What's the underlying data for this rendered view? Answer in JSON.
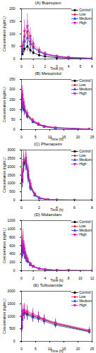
{
  "chart_data": [
    {
      "type": "line",
      "panel": "(A)",
      "title": "Bupropion",
      "x_label": "Time (h)",
      "y_label": "Concentration (ng/mL)",
      "x": [
        0.083,
        0.25,
        0.5,
        0.75,
        1,
        1.5,
        2,
        3,
        4,
        6
      ],
      "xlim": [
        0,
        6
      ],
      "xticks": [
        0,
        1,
        2,
        3,
        4,
        5,
        6
      ],
      "ylim": [
        0,
        200
      ],
      "yticks": [
        0,
        50,
        100,
        150,
        200
      ],
      "legend": "top-right",
      "series": [
        {
          "name": "Control",
          "color": "#000000",
          "marker": "square",
          "line_style": "solid",
          "values": [
            20,
            40,
            50,
            35,
            25,
            15,
            10,
            5,
            3,
            1
          ],
          "errors": [
            8,
            15,
            20,
            14,
            10,
            6,
            4,
            2,
            1,
            0.5
          ]
        },
        {
          "name": "Low",
          "color": "#e8191b",
          "marker": "circle",
          "line_style": "solid",
          "values": [
            40,
            90,
            110,
            70,
            50,
            30,
            20,
            10,
            6,
            2
          ],
          "errors": [
            18,
            35,
            45,
            28,
            20,
            12,
            8,
            4,
            2,
            1
          ]
        },
        {
          "name": "Medium",
          "color": "#1f3fd6",
          "marker": "triangle",
          "line_style": "solid",
          "values": [
            30,
            70,
            85,
            60,
            45,
            28,
            18,
            9,
            5,
            2
          ],
          "errors": [
            12,
            28,
            30,
            22,
            16,
            10,
            7,
            3,
            2,
            1
          ]
        },
        {
          "name": "High",
          "color": "#d61fc4",
          "marker": "down-triangle",
          "line_style": "solid",
          "values": [
            50,
            110,
            130,
            90,
            60,
            35,
            22,
            12,
            7,
            3
          ],
          "errors": [
            20,
            45,
            50,
            35,
            22,
            14,
            9,
            5,
            3,
            1
          ]
        }
      ]
    },
    {
      "type": "line",
      "panel": "(B)",
      "title": "Metoprolol",
      "x_label": "Time (h)",
      "y_label": "Concentration (ng/mL)",
      "x": [
        0.083,
        0.25,
        0.5,
        1,
        2,
        4,
        6,
        8,
        12,
        24
      ],
      "xlim": [
        0,
        25
      ],
      "xticks": [
        0,
        5,
        10,
        15,
        20,
        25
      ],
      "ylim": [
        0,
        250
      ],
      "yticks": [
        0,
        50,
        100,
        150,
        200,
        250
      ],
      "legend": "top-right",
      "series": [
        {
          "name": "Control",
          "color": "#000000",
          "marker": "square",
          "line_style": "solid",
          "values": [
            120,
            150,
            130,
            100,
            70,
            40,
            25,
            15,
            8,
            2
          ],
          "errors": [
            30,
            40,
            35,
            25,
            15,
            10,
            6,
            4,
            2,
            1
          ]
        },
        {
          "name": "Low",
          "color": "#e8191b",
          "marker": "circle",
          "line_style": "solid",
          "values": [
            130,
            160,
            140,
            110,
            75,
            45,
            28,
            17,
            9,
            2
          ],
          "errors": [
            35,
            45,
            40,
            28,
            18,
            10,
            7,
            4,
            2,
            1
          ]
        },
        {
          "name": "Medium",
          "color": "#1f3fd6",
          "marker": "triangle",
          "line_style": "solid",
          "values": [
            110,
            140,
            125,
            95,
            65,
            38,
            24,
            14,
            7,
            2
          ],
          "errors": [
            28,
            38,
            32,
            24,
            14,
            9,
            6,
            3,
            2,
            1
          ]
        },
        {
          "name": "High",
          "color": "#d61fc4",
          "marker": "down-triangle",
          "line_style": "solid",
          "values": [
            140,
            170,
            150,
            115,
            80,
            48,
            30,
            18,
            10,
            3
          ],
          "errors": [
            40,
            50,
            45,
            30,
            20,
            12,
            8,
            5,
            3,
            1
          ]
        }
      ]
    },
    {
      "type": "line",
      "panel": "(C)",
      "title": "Phenacetin",
      "x_label": "Time (h)",
      "y_label": "Concentration (ng/mL)",
      "x": [
        0.083,
        0.25,
        0.5,
        0.75,
        1,
        1.5,
        2,
        3,
        4,
        6,
        8
      ],
      "xlim": [
        0,
        8
      ],
      "xticks": [
        0,
        2,
        4,
        6,
        8
      ],
      "ylim": [
        0,
        3000
      ],
      "yticks": [
        0,
        500,
        1000,
        1500,
        2000,
        2500,
        3000
      ],
      "legend": "top-right",
      "series": [
        {
          "name": "Control",
          "color": "#000000",
          "marker": "square",
          "line_style": "solid",
          "values": [
            1200,
            2200,
            2300,
            1500,
            800,
            300,
            120,
            30,
            10,
            3,
            1
          ],
          "errors": [
            400,
            500,
            500,
            400,
            250,
            100,
            40,
            10,
            4,
            1,
            0.5
          ]
        },
        {
          "name": "Low",
          "color": "#e8191b",
          "marker": "circle",
          "line_style": "solid",
          "values": [
            1300,
            2300,
            2400,
            1600,
            900,
            350,
            140,
            35,
            12,
            3,
            1
          ],
          "errors": [
            450,
            550,
            500,
            450,
            300,
            120,
            45,
            12,
            5,
            1,
            0.5
          ]
        },
        {
          "name": "Medium",
          "color": "#1f3fd6",
          "marker": "triangle",
          "line_style": "solid",
          "values": [
            1100,
            2100,
            2200,
            1400,
            750,
            280,
            110,
            28,
            9,
            2,
            1
          ],
          "errors": [
            380,
            480,
            450,
            380,
            220,
            90,
            35,
            10,
            3,
            1,
            0.5
          ]
        },
        {
          "name": "High",
          "color": "#d61fc4",
          "marker": "down-triangle",
          "line_style": "solid",
          "values": [
            1400,
            2400,
            2500,
            1700,
            950,
            380,
            150,
            40,
            14,
            4,
            1
          ],
          "errors": [
            500,
            600,
            550,
            500,
            320,
            130,
            50,
            14,
            5,
            1,
            0.5
          ]
        }
      ]
    },
    {
      "type": "line",
      "panel": "(D)",
      "title": "Midazolam",
      "x_label": "Time (h)",
      "y_label": "Concentration (ng/mL)",
      "x": [
        0.083,
        0.25,
        0.5,
        0.75,
        1,
        1.5,
        2,
        3,
        4,
        6,
        8,
        12
      ],
      "xlim": [
        0,
        12
      ],
      "xticks": [
        0,
        2,
        4,
        6,
        8,
        10,
        12
      ],
      "ylim": [
        0,
        1200
      ],
      "yticks": [
        0,
        200,
        400,
        600,
        800,
        1000,
        1200
      ],
      "legend": "top-right",
      "series": [
        {
          "name": "Control",
          "color": "#000000",
          "marker": "square",
          "line_style": "solid",
          "values": [
            500,
            600,
            450,
            320,
            250,
            150,
            100,
            50,
            30,
            12,
            6,
            2
          ],
          "errors": [
            200,
            250,
            150,
            100,
            70,
            40,
            25,
            12,
            8,
            4,
            2,
            1
          ]
        },
        {
          "name": "Low",
          "color": "#e8191b",
          "marker": "circle",
          "line_style": "solid",
          "values": [
            550,
            650,
            480,
            340,
            260,
            160,
            105,
            52,
            32,
            13,
            6,
            2
          ],
          "errors": [
            220,
            280,
            160,
            110,
            75,
            45,
            28,
            13,
            9,
            4,
            2,
            1
          ]
        },
        {
          "name": "Medium",
          "color": "#1f3fd6",
          "marker": "triangle",
          "line_style": "solid",
          "values": [
            450,
            560,
            420,
            300,
            230,
            140,
            95,
            48,
            28,
            11,
            5,
            2
          ],
          "errors": [
            180,
            230,
            140,
            90,
            65,
            38,
            24,
            12,
            7,
            3,
            2,
            1
          ]
        },
        {
          "name": "High",
          "color": "#d61fc4",
          "marker": "down-triangle",
          "line_style": "solid",
          "values": [
            600,
            700,
            520,
            360,
            280,
            170,
            110,
            55,
            34,
            14,
            7,
            2
          ],
          "errors": [
            250,
            300,
            180,
            120,
            80,
            48,
            30,
            15,
            10,
            4,
            2,
            1
          ]
        }
      ]
    },
    {
      "type": "line",
      "panel": "(E)",
      "title": "Tolbutamide",
      "x_label": "Time (h)",
      "y_label": "Concentration (ng/mL)",
      "x": [
        0.083,
        0.25,
        0.5,
        1,
        2,
        4,
        6,
        8,
        12,
        24
      ],
      "xlim": [
        0,
        25
      ],
      "xticks": [
        0,
        5,
        10,
        15,
        20,
        25
      ],
      "ylim": [
        0,
        2000
      ],
      "yticks": [
        0,
        500,
        1000,
        1500,
        2000
      ],
      "legend": "top-right",
      "series": [
        {
          "name": "Control",
          "color": "#000000",
          "marker": "square",
          "line_style": "solid",
          "values": [
            600,
            900,
            1100,
            1150,
            1100,
            1000,
            950,
            850,
            700,
            400
          ],
          "errors": [
            200,
            250,
            250,
            250,
            220,
            200,
            180,
            160,
            140,
            100
          ]
        },
        {
          "name": "Low",
          "color": "#e8191b",
          "marker": "circle",
          "line_style": "solid",
          "values": [
            650,
            950,
            1150,
            1200,
            1150,
            1050,
            980,
            880,
            720,
            420
          ],
          "errors": [
            220,
            260,
            260,
            260,
            230,
            210,
            190,
            170,
            150,
            110
          ]
        },
        {
          "name": "Medium",
          "color": "#1f3fd6",
          "marker": "triangle",
          "line_style": "solid",
          "values": [
            550,
            850,
            1050,
            1100,
            1050,
            950,
            900,
            800,
            650,
            380
          ],
          "errors": [
            180,
            240,
            240,
            240,
            210,
            190,
            170,
            150,
            130,
            90
          ]
        },
        {
          "name": "High",
          "color": "#d61fc4",
          "marker": "down-triangle",
          "line_style": "solid",
          "values": [
            700,
            1000,
            1200,
            1250,
            1200,
            1100,
            1000,
            900,
            750,
            450
          ],
          "errors": [
            240,
            280,
            280,
            280,
            250,
            220,
            200,
            180,
            160,
            120
          ]
        }
      ]
    }
  ]
}
